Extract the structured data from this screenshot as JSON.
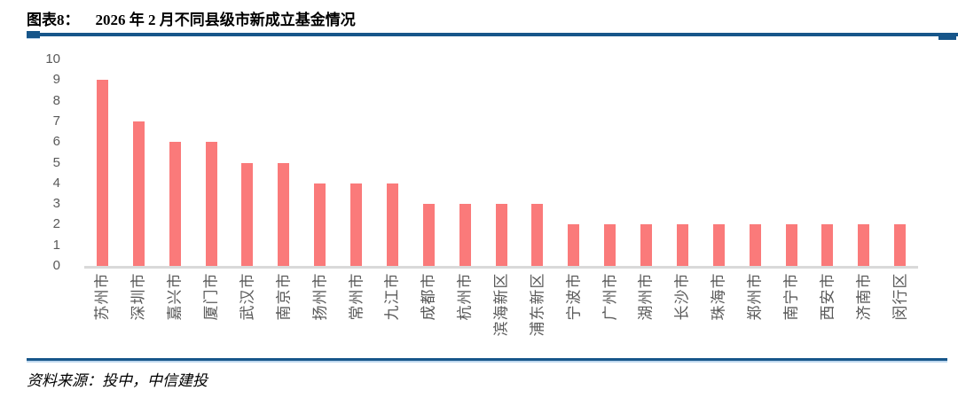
{
  "header": {
    "figure_label": "图表8：",
    "title": "2026 年 2 月不同县级市新成立基金情况"
  },
  "chart_data": {
    "type": "bar",
    "title": "2026 年 2 月不同县级市新成立基金情况",
    "categories": [
      "苏州市",
      "深圳市",
      "嘉兴市",
      "厦门市",
      "武汉市",
      "南京市",
      "扬州市",
      "常州市",
      "九江市",
      "成都市",
      "杭州市",
      "滨海新区",
      "浦东新区",
      "宁波市",
      "广州市",
      "湖州市",
      "长沙市",
      "珠海市",
      "郑州市",
      "南宁市",
      "西安市",
      "济南市",
      "闵行区"
    ],
    "values": [
      9,
      7,
      6,
      6,
      5,
      5,
      4,
      4,
      4,
      3,
      3,
      3,
      3,
      2,
      2,
      2,
      2,
      2,
      2,
      2,
      2,
      2,
      2
    ],
    "xlabel": "",
    "ylabel": "",
    "ylim": [
      0,
      10
    ],
    "ytick_step": 1,
    "yticks": [
      "10",
      "9",
      "8",
      "7",
      "6",
      "5",
      "4",
      "3",
      "2",
      "1",
      "0"
    ],
    "grid": false,
    "legend": false,
    "x_label_rotation_deg": 90,
    "bar_color": "#fa7a7a",
    "baseline_color": "#d9d9d9"
  },
  "footer": {
    "source": "资料来源：投中，中信建投"
  },
  "colors": {
    "rule_blue": "#17568a",
    "rule_light_blue": "#bdd7ee",
    "tick_text": "#595959",
    "title_text": "#000000"
  }
}
